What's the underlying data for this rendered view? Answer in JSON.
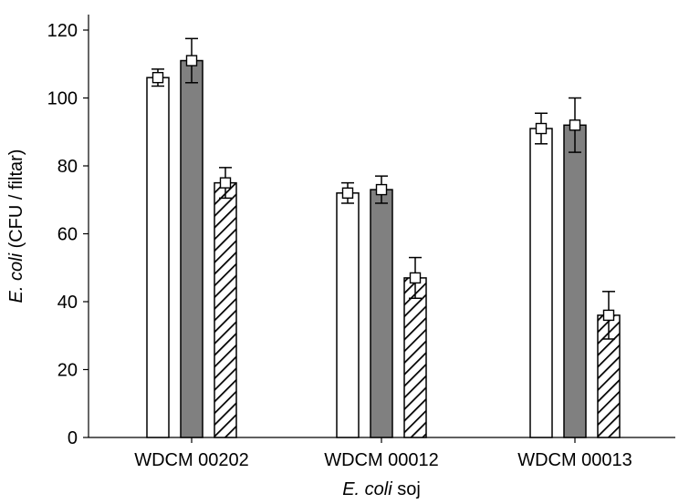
{
  "chart_data": {
    "type": "bar",
    "title": "",
    "xlabel_italic": "E. coli",
    "xlabel_rest": " soj",
    "ylabel_italic": "E. coli",
    "ylabel_rest": " (CFU / filtar)",
    "ylim": [
      0,
      120
    ],
    "yticks": [
      0,
      20,
      40,
      60,
      80,
      100,
      120
    ],
    "categories": [
      "WDCM 00202",
      "WDCM 00012",
      "WDCM 00013"
    ],
    "grid": false,
    "legend": "none",
    "series": [
      {
        "values": [
          106,
          72,
          91
        ],
        "errors": [
          2.5,
          3,
          4.5
        ],
        "fill": "#ffffff",
        "pattern": "none"
      },
      {
        "values": [
          111,
          73,
          92
        ],
        "errors": [
          6.5,
          4,
          8
        ],
        "fill": "#808080",
        "pattern": "none"
      },
      {
        "values": [
          75,
          47,
          36
        ],
        "errors": [
          4.5,
          6,
          7
        ],
        "fill": "#ffffff",
        "pattern": "diagonal-hatch"
      }
    ]
  }
}
